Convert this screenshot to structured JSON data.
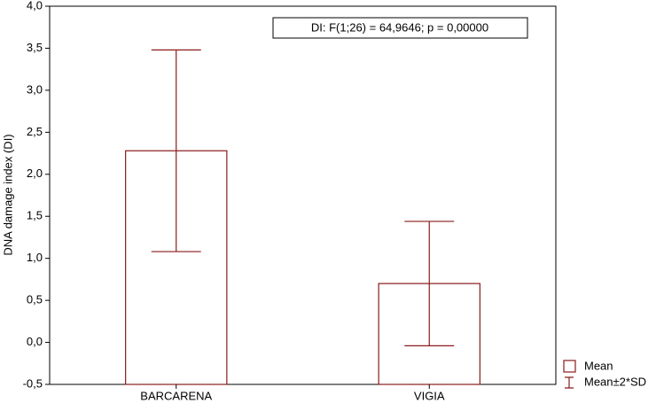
{
  "chart_data": {
    "type": "bar",
    "y_label": "DNA damage index (DI)",
    "annotation": "DI:   F(1;26) = 64,9646; p = 0,00000",
    "categories": [
      "BARCARENA",
      "VIGIA"
    ],
    "values": [
      2.28,
      0.7
    ],
    "errors": [
      1.2,
      0.74
    ],
    "color": "#8b1a1a",
    "legend": [
      "Mean",
      "Mean±2*SD"
    ],
    "ylim": [
      -0.5,
      4.0
    ],
    "yticks": [
      {
        "value": -0.5,
        "label": "-0,5"
      },
      {
        "value": 0,
        "label": "0,0"
      },
      {
        "value": 0.5,
        "label": "0,5"
      },
      {
        "value": 1,
        "label": "1,0"
      },
      {
        "value": 1.5,
        "label": "1,5"
      },
      {
        "value": 2,
        "label": "2,0"
      },
      {
        "value": 2.5,
        "label": "2,5"
      },
      {
        "value": 3,
        "label": "3,0"
      },
      {
        "value": 3.5,
        "label": "3,5"
      },
      {
        "value": 4,
        "label": "4,0"
      }
    ]
  }
}
